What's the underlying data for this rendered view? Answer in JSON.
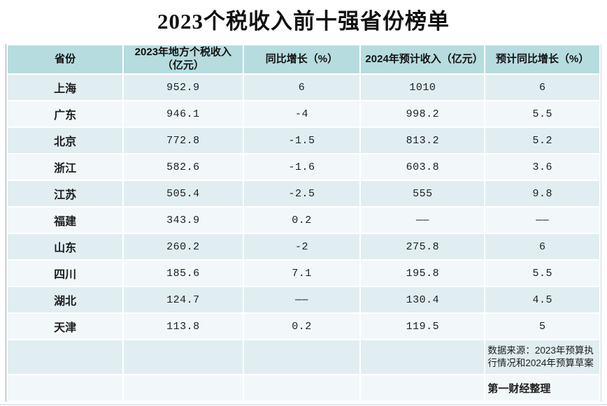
{
  "title": "2023个税收入前十强省份榜单",
  "colors": {
    "header_bg": "#b6dcdf",
    "row_odd_bg": "#e0eef1",
    "row_even_bg": "#f2f8fa",
    "gap": "#ffffff",
    "title_color": "#111111",
    "text_color": "#1d1d1d",
    "table_border_left": "#98a6a8",
    "table_border_right": "#ccd8d9",
    "bottom_strip": "#dfe9f2"
  },
  "table": {
    "columns": [
      "省份",
      "2023年地方个税收入（亿元）",
      "同比增长（%）",
      "2024年预计收入（亿元）",
      "预计同比增长（%）"
    ],
    "rows": [
      [
        "上海",
        "952.9",
        "6",
        "1010",
        "6"
      ],
      [
        "广东",
        "946.1",
        "-4",
        "998.2",
        "5.5"
      ],
      [
        "北京",
        "772.8",
        "-1.5",
        "813.2",
        "5.2"
      ],
      [
        "浙江",
        "582.6",
        "-1.6",
        "603.8",
        "3.6"
      ],
      [
        "江苏",
        "505.4",
        "-2.5",
        "555",
        "9.8"
      ],
      [
        "福建",
        "343.9",
        "0.2",
        "——",
        "——"
      ],
      [
        "山东",
        "260.2",
        "-2",
        "275.8",
        "6"
      ],
      [
        "四川",
        "185.6",
        "7.1",
        "195.8",
        "5.5"
      ],
      [
        "湖北",
        "124.7",
        "——",
        "130.4",
        "4.5"
      ],
      [
        "天津",
        "113.8",
        "0.2",
        "119.5",
        "5"
      ]
    ],
    "footer": {
      "source_note": "数据来源：2023年预算执行情况和2024年预算草案",
      "credit": "第一财经整理"
    }
  },
  "chart_data": {
    "type": "table",
    "title": "2023个税收入前十强省份榜单",
    "columns": [
      "省份",
      "2023年地方个税收入（亿元）",
      "同比增长（%）",
      "2024年预计收入（亿元）",
      "预计同比增长（%）"
    ],
    "rows": [
      {
        "province": "上海",
        "income_2023": 952.9,
        "yoy_growth": 6,
        "expected_2024": 1010,
        "expected_growth": 6
      },
      {
        "province": "广东",
        "income_2023": 946.1,
        "yoy_growth": -4,
        "expected_2024": 998.2,
        "expected_growth": 5.5
      },
      {
        "province": "北京",
        "income_2023": 772.8,
        "yoy_growth": -1.5,
        "expected_2024": 813.2,
        "expected_growth": 5.2
      },
      {
        "province": "浙江",
        "income_2023": 582.6,
        "yoy_growth": -1.6,
        "expected_2024": 603.8,
        "expected_growth": 3.6
      },
      {
        "province": "江苏",
        "income_2023": 505.4,
        "yoy_growth": -2.5,
        "expected_2024": 555,
        "expected_growth": 9.8
      },
      {
        "province": "福建",
        "income_2023": 343.9,
        "yoy_growth": 0.2,
        "expected_2024": null,
        "expected_growth": null
      },
      {
        "province": "山东",
        "income_2023": 260.2,
        "yoy_growth": -2,
        "expected_2024": 275.8,
        "expected_growth": 6
      },
      {
        "province": "四川",
        "income_2023": 185.6,
        "yoy_growth": 7.1,
        "expected_2024": 195.8,
        "expected_growth": 5.5
      },
      {
        "province": "湖北",
        "income_2023": 124.7,
        "yoy_growth": null,
        "expected_2024": 130.4,
        "expected_growth": 4.5
      },
      {
        "province": "天津",
        "income_2023": 113.8,
        "yoy_growth": 0.2,
        "expected_2024": 119.5,
        "expected_growth": 5
      }
    ],
    "missing_value_symbol": "——",
    "source_note": "数据来源：2023年预算执行情况和2024年预算草案",
    "credit": "第一财经整理"
  }
}
